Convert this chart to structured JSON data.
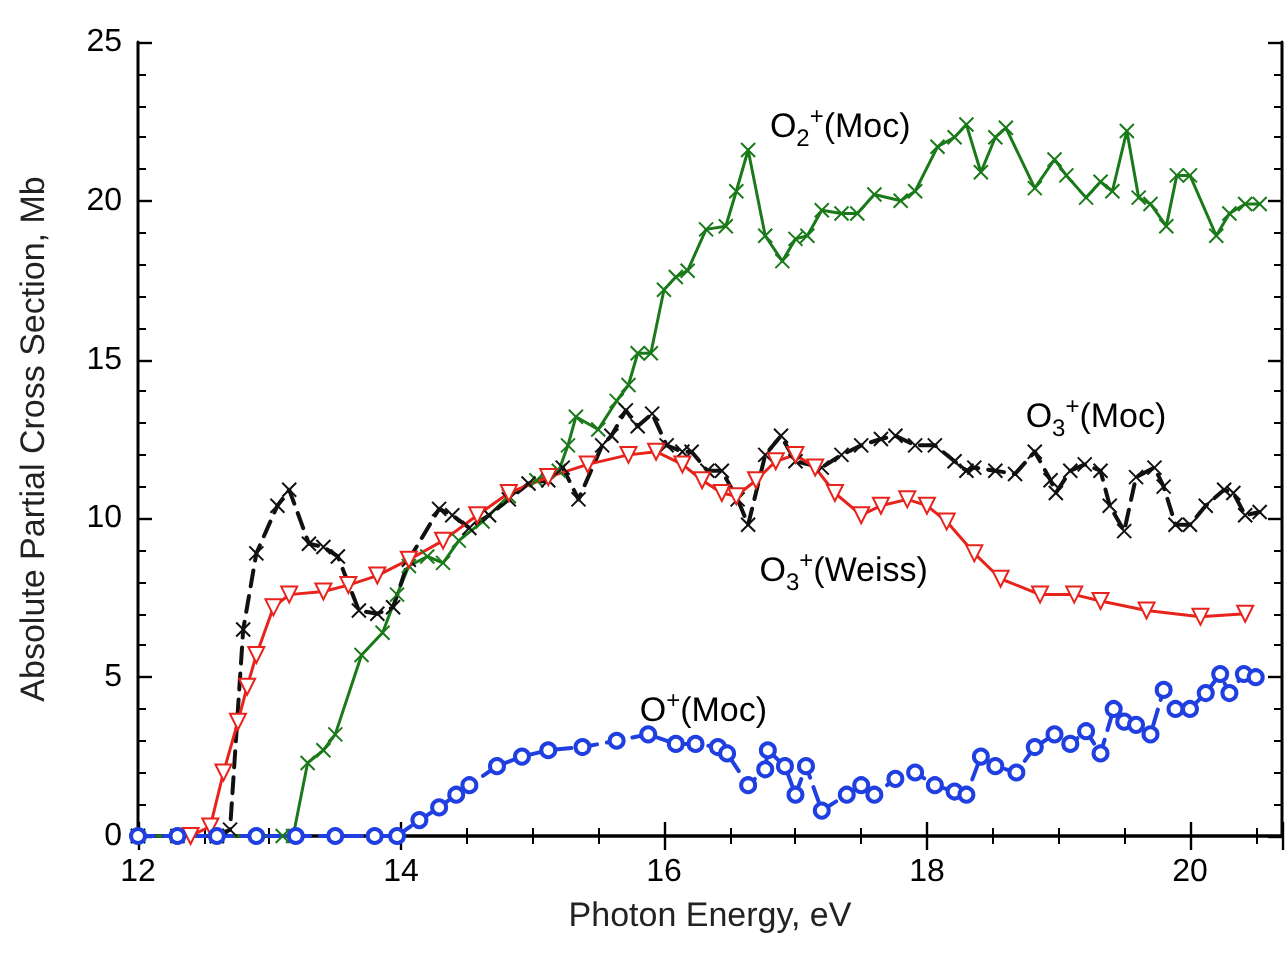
{
  "chart_data": {
    "type": "line",
    "xlabel": "Photon Energy, eV",
    "ylabel": "Absolute Partial Cross Section, Mb",
    "xlim": [
      12,
      20.7
    ],
    "xticks": [
      12,
      14,
      16,
      18,
      20
    ],
    "ylim": [
      0,
      25
    ],
    "yticks": [
      0,
      5,
      10,
      15,
      20,
      25
    ],
    "grid": false,
    "series": [
      {
        "color": "#1a7a1a",
        "marker": "cross",
        "line_style": "solid",
        "x": [
          12.0,
          12.6,
          13.1,
          13.18,
          13.29,
          13.41,
          13.5,
          13.7,
          13.86,
          13.97,
          14.06,
          14.2,
          14.32,
          14.44,
          14.62,
          14.82,
          15.03,
          15.2,
          15.27,
          15.33,
          15.5,
          15.64,
          15.73,
          15.8,
          15.9,
          16.0,
          16.09,
          16.18,
          16.32,
          16.47,
          16.55,
          16.64,
          16.77,
          16.9,
          17.0,
          17.09,
          17.2,
          17.35,
          17.47,
          17.6,
          17.8,
          17.91,
          18.08,
          18.21,
          18.3,
          18.41,
          18.52,
          18.6,
          18.82,
          18.97,
          19.06,
          19.21,
          19.32,
          19.41,
          19.52,
          19.61,
          19.7,
          19.82,
          19.9,
          20.0,
          20.2,
          20.3,
          20.42,
          20.53
        ],
        "values": [
          0,
          0,
          0,
          0,
          2.3,
          2.7,
          3.2,
          5.7,
          6.4,
          7.6,
          8.5,
          8.8,
          8.6,
          9.3,
          9.9,
          10.7,
          11.2,
          11.5,
          12.3,
          13.2,
          12.8,
          13.7,
          14.2,
          15.2,
          15.2,
          17.2,
          17.6,
          17.8,
          19.1,
          19.2,
          20.3,
          21.6,
          18.9,
          18.1,
          18.8,
          18.9,
          19.7,
          19.6,
          19.6,
          20.2,
          20.0,
          20.3,
          21.7,
          22.0,
          22.4,
          20.9,
          22.0,
          22.3,
          20.4,
          21.3,
          20.8,
          20.1,
          20.6,
          20.3,
          22.2,
          20.1,
          19.9,
          19.2,
          20.8,
          20.8,
          18.9,
          19.6,
          19.9,
          19.9
        ]
      },
      {
        "color": "#111111",
        "marker": "cross",
        "line_style": "dashed",
        "x": [
          12.0,
          12.3,
          12.6,
          12.7,
          12.8,
          12.9,
          13.06,
          13.15,
          13.3,
          13.41,
          13.52,
          13.68,
          13.82,
          13.94,
          14.06,
          14.29,
          14.39,
          14.52,
          14.67,
          14.82,
          14.97,
          15.12,
          15.23,
          15.35,
          15.53,
          15.6,
          15.71,
          15.8,
          15.91,
          16.02,
          16.14,
          16.21,
          16.33,
          16.44,
          16.56,
          16.64,
          16.77,
          16.89,
          17.0,
          17.2,
          17.35,
          17.5,
          17.65,
          17.76,
          17.91,
          18.06,
          18.21,
          18.3,
          18.36,
          18.52,
          18.67,
          18.82,
          18.94,
          18.98,
          19.09,
          19.2,
          19.32,
          19.39,
          19.5,
          19.59,
          19.73,
          19.8,
          19.89,
          20.0,
          20.12,
          20.26,
          20.33,
          20.42,
          20.53
        ],
        "values": [
          0,
          0,
          0,
          0.2,
          6.5,
          8.9,
          10.4,
          10.9,
          9.2,
          9.1,
          8.8,
          7.1,
          7.0,
          7.2,
          8.7,
          10.3,
          10.1,
          9.7,
          10.1,
          10.6,
          11.1,
          11.2,
          11.6,
          10.6,
          12.3,
          12.6,
          13.4,
          12.9,
          13.3,
          12.3,
          12.1,
          12.1,
          11.5,
          11.5,
          10.6,
          9.8,
          12.0,
          12.6,
          11.8,
          11.6,
          12.0,
          12.3,
          12.5,
          12.6,
          12.3,
          12.3,
          11.8,
          11.5,
          11.6,
          11.5,
          11.4,
          12.1,
          11.2,
          10.8,
          11.5,
          11.7,
          11.5,
          10.4,
          9.6,
          11.3,
          11.6,
          11.0,
          9.8,
          9.8,
          10.4,
          10.9,
          10.8,
          10.1,
          10.2
        ]
      },
      {
        "color": "#e8231c",
        "marker": "triangle",
        "line_style": "solid",
        "x": [
          12.4,
          12.55,
          12.65,
          12.76,
          12.83,
          12.9,
          13.03,
          13.15,
          13.41,
          13.6,
          13.82,
          14.06,
          14.32,
          14.58,
          14.82,
          15.12,
          15.42,
          15.73,
          15.94,
          16.14,
          16.29,
          16.44,
          16.55,
          16.7,
          16.85,
          17.0,
          17.15,
          17.3,
          17.5,
          17.65,
          17.85,
          18.0,
          18.15,
          18.36,
          18.56,
          18.86,
          19.12,
          19.32,
          19.67,
          20.08,
          20.42
        ],
        "values": [
          0,
          0.3,
          2.0,
          3.6,
          4.7,
          5.7,
          7.2,
          7.6,
          7.7,
          7.9,
          8.2,
          8.7,
          9.3,
          10.1,
          10.8,
          11.3,
          11.7,
          12.0,
          12.1,
          11.7,
          11.2,
          10.8,
          10.7,
          11.2,
          11.8,
          12.0,
          11.6,
          10.8,
          10.1,
          10.4,
          10.6,
          10.4,
          9.9,
          8.9,
          8.1,
          7.6,
          7.6,
          7.4,
          7.1,
          6.9,
          7.0
        ]
      },
      {
        "color": "#1f3fe0",
        "marker": "circle",
        "line_style": "dashed",
        "x": [
          12.0,
          12.3,
          12.6,
          12.9,
          13.2,
          13.5,
          13.8,
          13.97,
          14.14,
          14.29,
          14.42,
          14.52,
          14.73,
          14.92,
          15.12,
          15.38,
          15.64,
          15.88,
          16.09,
          16.24,
          16.41,
          16.48,
          16.64,
          16.77,
          16.79,
          16.92,
          17.0,
          17.08,
          17.2,
          17.39,
          17.5,
          17.6,
          17.76,
          17.91,
          18.06,
          18.21,
          18.3,
          18.41,
          18.52,
          18.68,
          18.82,
          18.97,
          19.09,
          19.21,
          19.32,
          19.42,
          19.5,
          19.59,
          19.7,
          19.8,
          19.89,
          20.0,
          20.12,
          20.23,
          20.3,
          20.41,
          20.5
        ],
        "values": [
          0,
          0,
          0,
          0,
          0,
          0,
          0,
          0,
          0.5,
          0.9,
          1.3,
          1.6,
          2.2,
          2.5,
          2.7,
          2.8,
          3.0,
          3.2,
          2.9,
          2.9,
          2.8,
          2.6,
          1.6,
          2.1,
          2.7,
          2.2,
          1.3,
          2.2,
          0.8,
          1.3,
          1.6,
          1.3,
          1.8,
          2.0,
          1.6,
          1.4,
          1.3,
          2.5,
          2.2,
          2.0,
          2.8,
          3.2,
          2.9,
          3.3,
          2.6,
          4.0,
          3.6,
          3.5,
          3.2,
          4.6,
          4.0,
          4.0,
          4.5,
          5.1,
          4.5,
          5.1,
          5.0
        ]
      }
    ],
    "annotations": [
      "O$_{2}$$^{+}$(Moc)",
      "O$_{3}$$^{+}$(Moc)",
      "O$_{3}$$^{+}$(Weiss)",
      "O$^{+}$(Moc)"
    ]
  }
}
